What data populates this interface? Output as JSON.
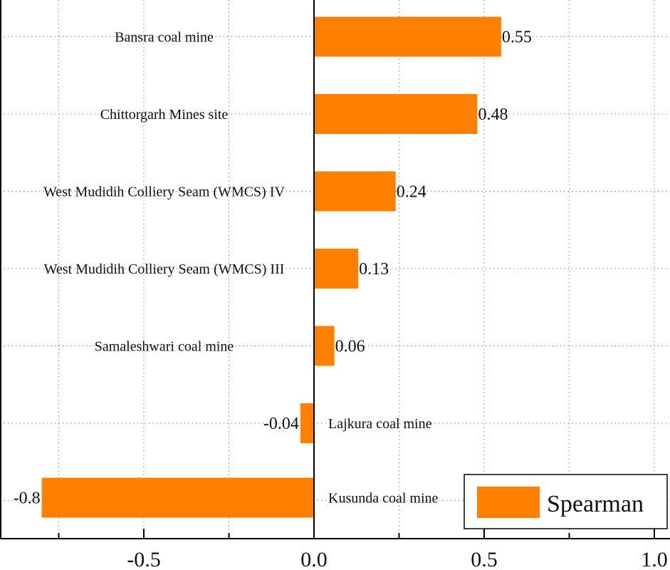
{
  "chart_data": {
    "type": "bar",
    "orientation": "horizontal",
    "title": "",
    "xlabel": "",
    "ylabel": "",
    "xlim": [
      -0.92,
      1.05
    ],
    "xticks": [
      -0.5,
      0.0,
      0.5,
      1.0
    ],
    "xtick_labels": [
      "-0.5",
      "0.0",
      "0.5",
      "1.0"
    ],
    "grid": true,
    "legend_position": "bottom-right",
    "categories": [
      "Bansra coal mine",
      "Chittorgarh Mines site",
      "West Mudidih Colliery Seam (WMCS) IV",
      "West Mudidih Colliery Seam (WMCS) III",
      "Samaleshwari coal mine",
      "Lajkura coal mine",
      "Kusunda coal mine"
    ],
    "series": [
      {
        "name": "Spearman",
        "color": "#ff8000",
        "values": [
          0.55,
          0.48,
          0.24,
          0.13,
          0.06,
          -0.04,
          -0.8
        ],
        "value_labels": [
          "0.55",
          "0.48",
          "0.24",
          "0.13",
          "0.06",
          "-0.04",
          "-0.8"
        ]
      }
    ]
  }
}
